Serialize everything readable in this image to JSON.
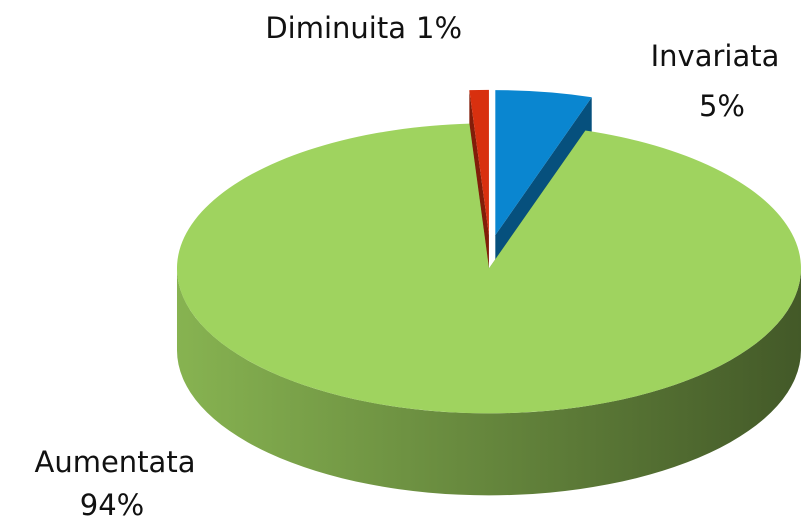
{
  "chart_data": {
    "type": "pie",
    "categories": [
      "Invariata",
      "Aumentata",
      "Diminuita"
    ],
    "values": [
      5,
      94,
      1
    ],
    "value_labels": [
      "5%",
      "94%",
      "1%"
    ],
    "colors": [
      "#0a86d0",
      "#9fd35f",
      "#d8300f"
    ]
  }
}
